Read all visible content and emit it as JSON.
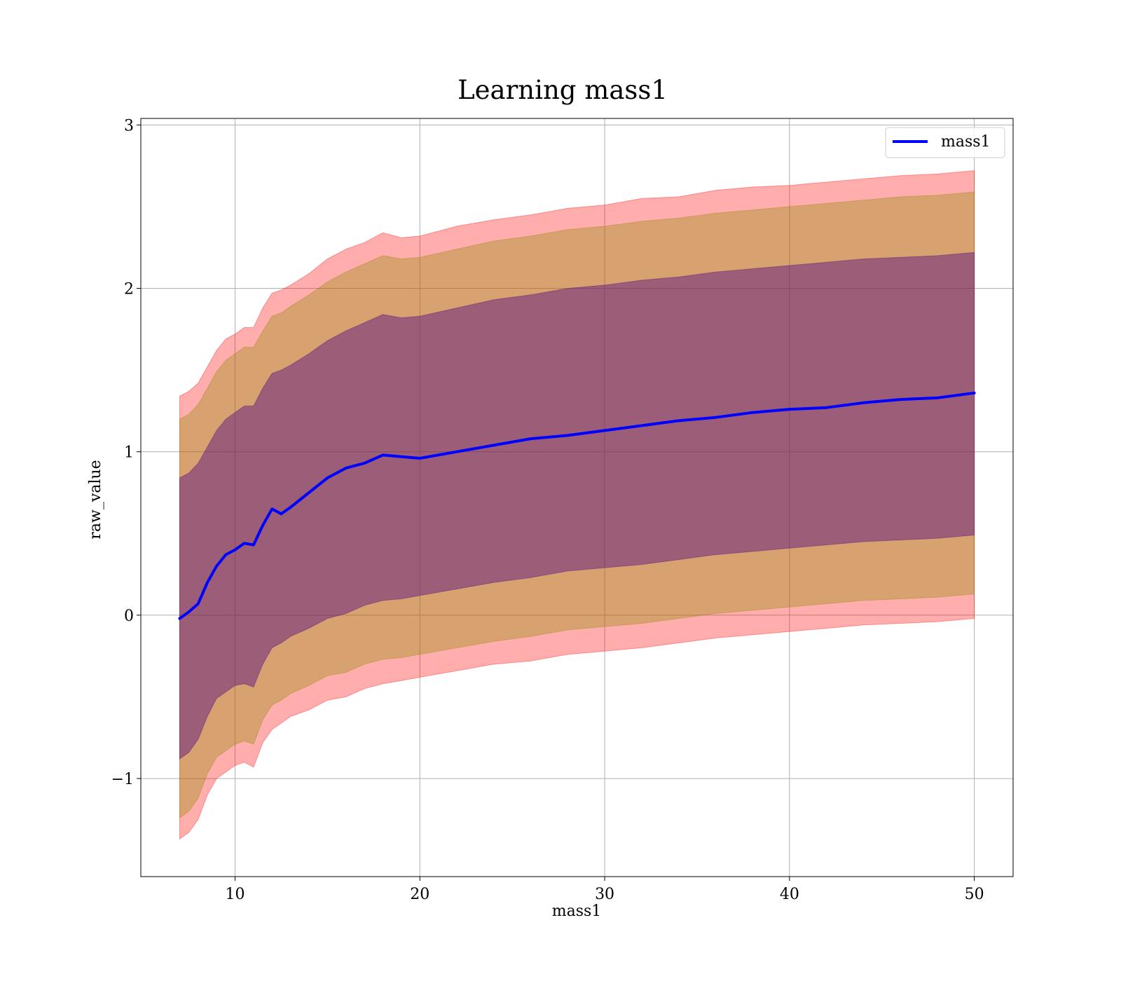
{
  "chart_data": {
    "type": "line",
    "title": "Learning mass1",
    "xlabel": "mass1",
    "ylabel": "raw_value",
    "xlim": [
      4.9,
      52.1
    ],
    "ylim": [
      -1.6,
      3.04
    ],
    "x_ticks": [
      10,
      20,
      30,
      40,
      50
    ],
    "y_ticks": [
      -1,
      0,
      1,
      2,
      3
    ],
    "grid": true,
    "legend": {
      "position": "top-right",
      "entries": [
        "mass1"
      ]
    },
    "colors": {
      "mean_line": "#0000ff",
      "band_outer": "#ff0000",
      "band_middle": "#8b8b00",
      "band_inner": "#4b0082",
      "grid": "#b0b0b0"
    },
    "x": [
      7.0,
      7.5,
      8.0,
      8.5,
      9.0,
      9.5,
      10.0,
      10.5,
      11.0,
      11.5,
      12.0,
      12.5,
      13.0,
      14.0,
      15.0,
      16.0,
      17.0,
      18.0,
      19.0,
      20.0,
      22.0,
      24.0,
      26.0,
      28.0,
      30.0,
      32.0,
      34.0,
      36.0,
      38.0,
      40.0,
      42.0,
      44.0,
      46.0,
      48.0,
      50.0
    ],
    "series": [
      {
        "name": "mass1",
        "values": [
          -0.02,
          0.02,
          0.07,
          0.2,
          0.3,
          0.37,
          0.4,
          0.44,
          0.43,
          0.55,
          0.65,
          0.62,
          0.66,
          0.75,
          0.84,
          0.9,
          0.93,
          0.98,
          0.97,
          0.96,
          1.0,
          1.04,
          1.08,
          1.1,
          1.13,
          1.16,
          1.19,
          1.21,
          1.24,
          1.26,
          1.27,
          1.3,
          1.32,
          1.33,
          1.36
        ]
      }
    ],
    "bands": [
      {
        "lower": [
          -1.37,
          -1.33,
          -1.25,
          -1.1,
          -1.0,
          -0.96,
          -0.92,
          -0.9,
          -0.93,
          -0.78,
          -0.7,
          -0.66,
          -0.62,
          -0.58,
          -0.52,
          -0.5,
          -0.45,
          -0.42,
          -0.4,
          -0.38,
          -0.34,
          -0.3,
          -0.28,
          -0.24,
          -0.22,
          -0.2,
          -0.17,
          -0.14,
          -0.12,
          -0.1,
          -0.08,
          -0.06,
          -0.05,
          -0.04,
          -0.02
        ],
        "upper": [
          1.34,
          1.37,
          1.42,
          1.52,
          1.62,
          1.69,
          1.72,
          1.76,
          1.76,
          1.88,
          1.97,
          1.99,
          2.02,
          2.09,
          2.18,
          2.24,
          2.28,
          2.34,
          2.31,
          2.32,
          2.38,
          2.42,
          2.45,
          2.49,
          2.51,
          2.55,
          2.56,
          2.6,
          2.62,
          2.63,
          2.65,
          2.67,
          2.69,
          2.7,
          2.72
        ]
      },
      {
        "lower": [
          -1.24,
          -1.2,
          -1.12,
          -0.97,
          -0.87,
          -0.83,
          -0.79,
          -0.77,
          -0.79,
          -0.64,
          -0.55,
          -0.52,
          -0.48,
          -0.43,
          -0.37,
          -0.35,
          -0.3,
          -0.27,
          -0.26,
          -0.24,
          -0.2,
          -0.16,
          -0.13,
          -0.09,
          -0.07,
          -0.05,
          -0.02,
          0.01,
          0.03,
          0.05,
          0.07,
          0.09,
          0.1,
          0.11,
          0.13
        ],
        "upper": [
          1.2,
          1.23,
          1.29,
          1.39,
          1.49,
          1.56,
          1.6,
          1.64,
          1.64,
          1.74,
          1.83,
          1.85,
          1.89,
          1.96,
          2.04,
          2.1,
          2.15,
          2.2,
          2.18,
          2.19,
          2.24,
          2.29,
          2.32,
          2.36,
          2.38,
          2.41,
          2.43,
          2.46,
          2.48,
          2.5,
          2.52,
          2.54,
          2.56,
          2.57,
          2.59
        ]
      },
      {
        "lower": [
          -0.88,
          -0.84,
          -0.76,
          -0.62,
          -0.51,
          -0.47,
          -0.43,
          -0.42,
          -0.44,
          -0.3,
          -0.2,
          -0.17,
          -0.13,
          -0.08,
          -0.02,
          0.01,
          0.06,
          0.09,
          0.1,
          0.12,
          0.16,
          0.2,
          0.23,
          0.27,
          0.29,
          0.31,
          0.34,
          0.37,
          0.39,
          0.41,
          0.43,
          0.45,
          0.46,
          0.47,
          0.49
        ],
        "upper": [
          0.84,
          0.87,
          0.93,
          1.03,
          1.13,
          1.2,
          1.24,
          1.28,
          1.28,
          1.39,
          1.48,
          1.5,
          1.53,
          1.6,
          1.68,
          1.74,
          1.79,
          1.84,
          1.82,
          1.83,
          1.88,
          1.93,
          1.96,
          2.0,
          2.02,
          2.05,
          2.07,
          2.1,
          2.12,
          2.14,
          2.16,
          2.18,
          2.19,
          2.2,
          2.22
        ]
      }
    ]
  }
}
